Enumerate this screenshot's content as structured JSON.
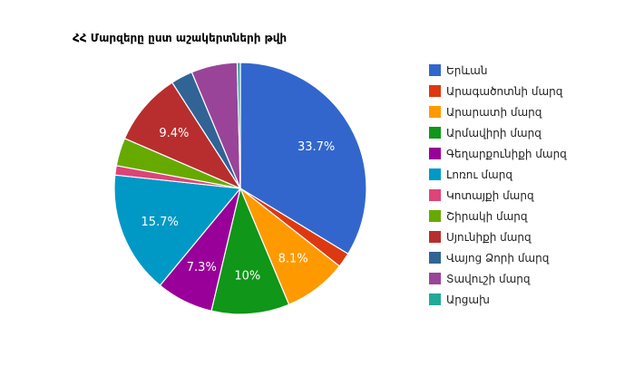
{
  "chart_data": {
    "type": "pie",
    "title": "ՀՀ Մարզերը ըստ աշակերտների թվի",
    "start_angle_deg": 0,
    "direction": "clockwise",
    "legend_position": "right",
    "slices": [
      {
        "label": "Երևան",
        "value": 33.7,
        "color": "#3366cc",
        "text": "33.7%"
      },
      {
        "label": "Արագածոտնի մարզ",
        "value": 1.9,
        "color": "#dc3912",
        "text": ""
      },
      {
        "label": "Արարատի մարզ",
        "value": 8.1,
        "color": "#ff9900",
        "text": "8.1%"
      },
      {
        "label": "Արմավիրի մարզ",
        "value": 10.0,
        "color": "#109618",
        "text": "10%"
      },
      {
        "label": "Գեղարքունիքի մարզ",
        "value": 7.3,
        "color": "#990099",
        "text": "7.3%"
      },
      {
        "label": "Լոռու մարզ",
        "value": 15.7,
        "color": "#0099c6",
        "text": "15.7%"
      },
      {
        "label": "Կոտայքի մարզ",
        "value": 1.2,
        "color": "#dd4477",
        "text": ""
      },
      {
        "label": "Շիրակի մարզ",
        "value": 3.6,
        "color": "#66aa00",
        "text": ""
      },
      {
        "label": "Սյունիքի մարզ",
        "value": 9.4,
        "color": "#b82e2e",
        "text": "9.4%"
      },
      {
        "label": "Վայոց Ձորի մարզ",
        "value": 2.8,
        "color": "#316395",
        "text": ""
      },
      {
        "label": "Տավուշի մարզ",
        "value": 5.9,
        "color": "#994499",
        "text": ""
      },
      {
        "label": "Արցախ",
        "value": 0.4,
        "color": "#22aa99",
        "text": ""
      }
    ]
  }
}
